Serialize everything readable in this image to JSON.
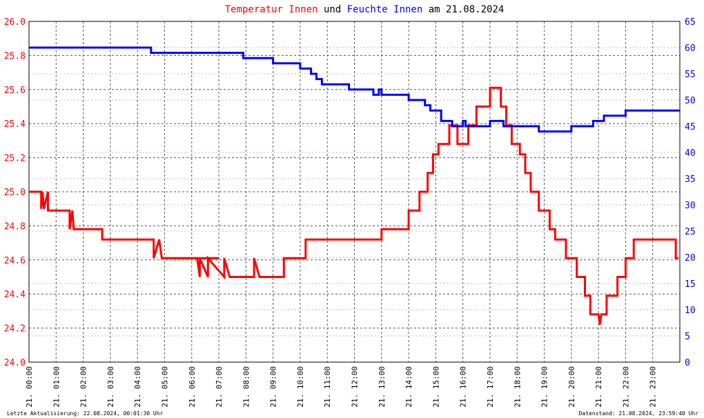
{
  "chart_data": {
    "type": "line",
    "title_connector": "und",
    "title_date": "am 21.08.2024",
    "footer_left": "Letzte Aktualisierung: 22.08.2024, 00:01:30 Uhr",
    "footer_right": "Datenstand: 21.08.2024, 23:59:40 Uhr",
    "xlim": [
      0,
      24
    ],
    "xticks": [
      {
        "value": 0,
        "label": "21. 00:00"
      },
      {
        "value": 1,
        "label": "21. 01:00"
      },
      {
        "value": 2,
        "label": "21. 02:00"
      },
      {
        "value": 3,
        "label": "21. 03:00"
      },
      {
        "value": 4,
        "label": "21. 04:00"
      },
      {
        "value": 5,
        "label": "21. 05:00"
      },
      {
        "value": 6,
        "label": "21. 06:00"
      },
      {
        "value": 7,
        "label": "21. 07:00"
      },
      {
        "value": 8,
        "label": "21. 08:00"
      },
      {
        "value": 9,
        "label": "21. 09:00"
      },
      {
        "value": 10,
        "label": "21. 10:00"
      },
      {
        "value": 11,
        "label": "21. 11:00"
      },
      {
        "value": 12,
        "label": "21. 12:00"
      },
      {
        "value": 13,
        "label": "21. 13:00"
      },
      {
        "value": 14,
        "label": "21. 14:00"
      },
      {
        "value": 15,
        "label": "21. 15:00"
      },
      {
        "value": 16,
        "label": "21. 16:00"
      },
      {
        "value": 17,
        "label": "21. 17:00"
      },
      {
        "value": 18,
        "label": "21. 18:00"
      },
      {
        "value": 19,
        "label": "21. 19:00"
      },
      {
        "value": 20,
        "label": "21. 20:00"
      },
      {
        "value": 21,
        "label": "21. 21:00"
      },
      {
        "value": 22,
        "label": "21. 22:00"
      },
      {
        "value": 23,
        "label": "21. 23:00"
      }
    ],
    "ylim": [
      24.0,
      26.0
    ],
    "yticks": [
      {
        "value": 24.0,
        "label": "24.0"
      },
      24.2,
      24.4,
      24.6,
      24.8,
      {
        "value": 25.0,
        "label": "25.0"
      },
      25.2,
      25.4,
      25.6,
      25.8,
      {
        "value": 26.0,
        "label": "26.0"
      }
    ],
    "y2lim": [
      0,
      65
    ],
    "y2ticks": [
      0,
      5,
      10,
      15,
      20,
      25,
      30,
      35,
      40,
      45,
      50,
      55,
      60,
      65
    ],
    "grid": true,
    "series": [
      {
        "name": "Temperatur Innen",
        "color": "#ff0000",
        "axis": "y",
        "x": [
          0,
          0.45,
          0.45,
          0.5,
          0.55,
          0.7,
          0.7,
          1.5,
          1.5,
          1.6,
          1.65,
          2.7,
          2.7,
          3.3,
          3.3,
          4.6,
          4.6,
          4.8,
          4.9,
          7.0,
          6.2,
          6.3,
          6.3,
          6.6,
          6.6,
          7.2,
          7.2,
          7.4,
          7.4,
          8.3,
          8.3,
          8.5,
          8.5,
          9.4,
          9.4,
          10.2,
          10.2,
          13.0,
          13.0,
          14.0,
          14.0,
          14.4,
          14.4,
          14.7,
          14.7,
          14.9,
          14.9,
          15.1,
          15.1,
          15.3,
          15.3,
          15.5,
          15.5,
          15.8,
          15.8,
          16.2,
          16.2,
          16.5,
          16.5,
          17.0,
          17.0,
          17.4,
          17.4,
          17.6,
          17.6,
          17.8,
          17.8,
          18.1,
          18.1,
          18.3,
          18.3,
          18.5,
          18.5,
          18.8,
          18.8,
          19.2,
          19.2,
          19.4,
          19.4,
          19.8,
          19.8,
          20.2,
          20.2,
          20.5,
          20.5,
          20.7,
          20.7,
          21.0,
          21.05,
          21.1,
          21.15,
          21.3,
          21.3,
          21.7,
          21.7,
          22.0,
          22.0,
          22.3,
          22.3,
          23.85,
          23.85,
          23.95
        ],
        "values": [
          25.0,
          25.0,
          24.9,
          25.0,
          24.9,
          25.0,
          24.89,
          24.89,
          24.78,
          24.89,
          24.78,
          24.78,
          24.72,
          24.72,
          24.72,
          24.72,
          24.61,
          24.72,
          24.61,
          24.61,
          24.61,
          24.5,
          24.61,
          24.5,
          24.61,
          24.5,
          24.61,
          24.5,
          24.5,
          24.5,
          24.61,
          24.5,
          24.5,
          24.5,
          24.61,
          24.61,
          24.72,
          24.72,
          24.78,
          24.78,
          24.89,
          24.89,
          25.0,
          25.0,
          25.11,
          25.11,
          25.22,
          25.22,
          25.28,
          25.28,
          25.28,
          25.28,
          25.39,
          25.39,
          25.28,
          25.28,
          25.39,
          25.39,
          25.5,
          25.5,
          25.61,
          25.61,
          25.5,
          25.5,
          25.39,
          25.39,
          25.28,
          25.28,
          25.22,
          25.22,
          25.11,
          25.11,
          25.0,
          25.0,
          24.89,
          24.89,
          24.78,
          24.78,
          24.72,
          24.72,
          24.61,
          24.61,
          24.5,
          24.5,
          24.39,
          24.39,
          24.28,
          24.28,
          24.22,
          24.28,
          24.28,
          24.28,
          24.39,
          24.39,
          24.5,
          24.5,
          24.61,
          24.61,
          24.72,
          24.72,
          24.61,
          24.61
        ]
      },
      {
        "name": "Feuchte Innen",
        "color": "#0000ff",
        "axis": "y2",
        "x": [
          0,
          4.5,
          4.5,
          7.9,
          7.9,
          9.0,
          9.0,
          10.0,
          10.0,
          10.4,
          10.4,
          10.6,
          10.6,
          10.8,
          10.8,
          11.8,
          11.8,
          12.7,
          12.7,
          12.9,
          12.9,
          13.0,
          13.0,
          14.0,
          14.0,
          14.6,
          14.6,
          14.8,
          14.8,
          15.2,
          15.2,
          15.6,
          15.6,
          16.0,
          16.0,
          16.1,
          16.1,
          17.0,
          17.0,
          17.5,
          17.5,
          18.8,
          18.8,
          20.0,
          20.0,
          20.8,
          20.8,
          21.2,
          21.2,
          22.0,
          22.0,
          24.0
        ],
        "values": [
          60,
          60,
          59,
          59,
          58,
          58,
          57,
          57,
          56,
          56,
          55,
          55,
          54,
          54,
          53,
          53,
          52,
          52,
          51,
          51,
          52,
          52,
          51,
          51,
          50,
          50,
          49,
          49,
          48,
          48,
          46,
          46,
          45,
          45,
          46,
          46,
          45,
          45,
          46,
          46,
          45,
          45,
          44,
          44,
          45,
          45,
          46,
          46,
          47,
          47,
          48,
          48
        ]
      }
    ]
  }
}
